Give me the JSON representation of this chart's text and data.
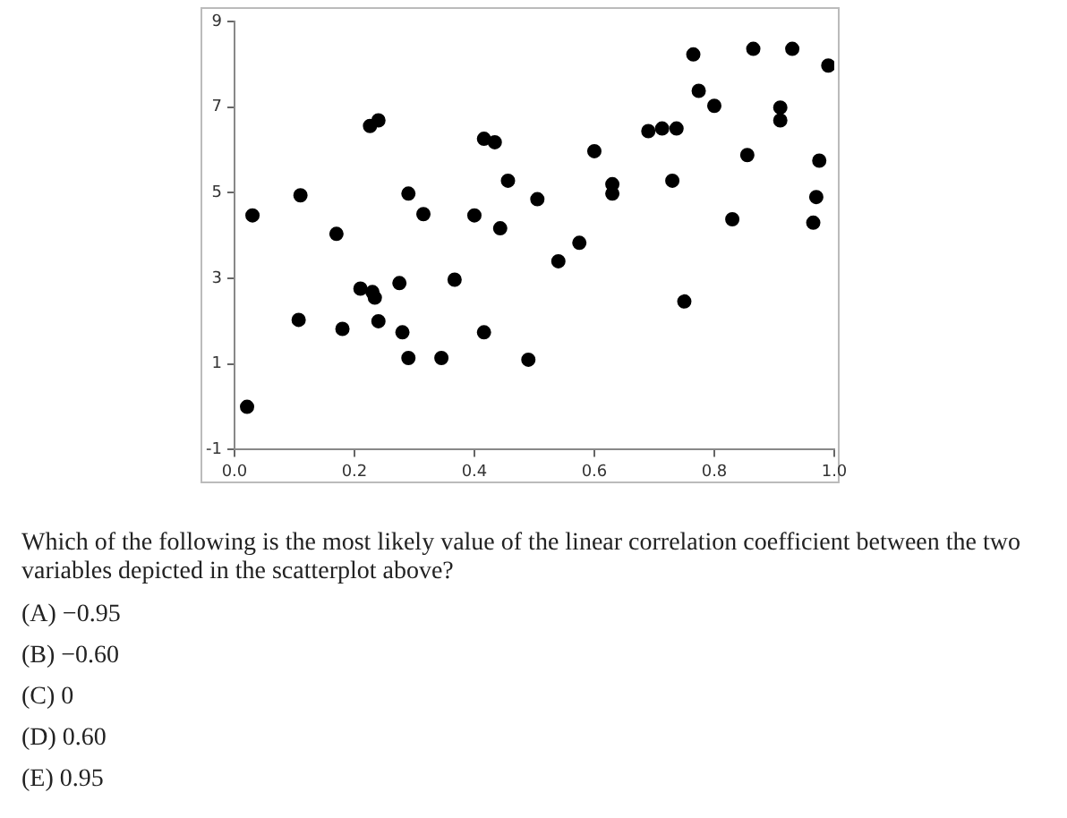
{
  "chart_data": {
    "type": "scatter",
    "color": "#000000",
    "marker": "circle",
    "grid": false,
    "legend": false,
    "xlim": [
      0,
      1
    ],
    "xticks": [
      {
        "value": 0,
        "label": "0.0"
      },
      0.2,
      0.4,
      0.6,
      0.8,
      {
        "value": 1,
        "label": "1.0"
      }
    ],
    "ylim": [
      -1,
      9
    ],
    "yticks": [
      -1,
      1,
      3,
      5,
      7,
      9
    ],
    "x": [
      0.021,
      0.03,
      0.11,
      0.107,
      0.17,
      0.18,
      0.226,
      0.24,
      0.21,
      0.23,
      0.234,
      0.24,
      0.29,
      0.315,
      0.275,
      0.28,
      0.29,
      0.345,
      0.367,
      0.4,
      0.416,
      0.434,
      0.443,
      0.456,
      0.416,
      0.49,
      0.505,
      0.54,
      0.575,
      0.6,
      0.63,
      0.63,
      0.69,
      0.713,
      0.737,
      0.73,
      0.75,
      0.765,
      0.774,
      0.8,
      0.83,
      0.855,
      0.865,
      0.91,
      0.91,
      0.93,
      0.99,
      0.975,
      0.97,
      0.965
    ],
    "values": [
      0.0,
      4.47,
      4.94,
      2.03,
      4.04,
      1.82,
      6.56,
      6.69,
      2.76,
      2.68,
      2.55,
      2.0,
      4.98,
      4.5,
      2.89,
      1.74,
      1.14,
      1.14,
      2.97,
      4.47,
      6.26,
      6.18,
      4.17,
      5.28,
      1.74,
      1.1,
      4.85,
      3.4,
      3.83,
      5.97,
      5.2,
      4.98,
      6.44,
      6.5,
      6.5,
      5.28,
      2.46,
      8.23,
      7.38,
      7.03,
      4.38,
      5.88,
      8.36,
      6.99,
      6.69,
      8.36,
      7.97,
      5.75,
      4.9,
      4.3
    ],
    "annotations": [
      "Which of the following is the most likely value of the linear correlation coefficient between the two variables depicted in the scatterplot above?",
      "(A) −0.95",
      "(B) −0.60",
      "(C) 0",
      "(D) 0.60",
      "(E) 0.95"
    ]
  }
}
